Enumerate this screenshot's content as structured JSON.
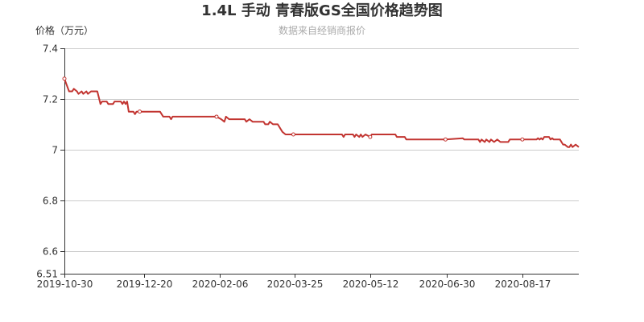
{
  "chart_data": {
    "type": "line",
    "title": "1.4L 手动 青春版GS全国价格趋势图",
    "subtitle": "数据来自经销商报价",
    "ylabel": "价格（万元）",
    "xlabel": "",
    "ylim": [
      6.51,
      7.4
    ],
    "yticks": [
      6.51,
      6.6,
      6.8,
      7,
      7.2,
      7.4
    ],
    "ytick_labels": [
      "6.51",
      "6.6",
      "6.8",
      "7",
      "7.2",
      "7.4"
    ],
    "xlim": [
      "2019-10-30",
      "2020-09-22"
    ],
    "xticks": [
      "2019-10-30",
      "2019-12-20",
      "2020-02-06",
      "2020-03-25",
      "2020-05-12",
      "2020-06-30",
      "2020-08-17"
    ],
    "grid": true,
    "colors": {
      "line": "#c23531",
      "grid": "#cccccc",
      "axis": "#333333"
    },
    "markers": [
      "2019-10-30",
      "2019-12-17",
      "2020-02-04",
      "2020-03-24",
      "2020-05-12",
      "2020-06-29",
      "2020-08-17"
    ],
    "series": [
      {
        "x": [
          "2019-10-30",
          "2019-11-02",
          "2019-11-04",
          "2019-11-05",
          "2019-11-07",
          "2019-11-08",
          "2019-11-10",
          "2019-11-11",
          "2019-11-13",
          "2019-11-14",
          "2019-11-16",
          "2019-11-20",
          "2019-11-22",
          "2019-11-23",
          "2019-11-26",
          "2019-11-27",
          "2019-11-30",
          "2019-12-01",
          "2019-12-05",
          "2019-12-06",
          "2019-12-07",
          "2019-12-08",
          "2019-12-09",
          "2019-12-10",
          "2019-12-13",
          "2019-12-14",
          "2019-12-15",
          "2019-12-17",
          "2019-12-30",
          "2019-12-31",
          "2020-01-01",
          "2020-01-05",
          "2020-01-06",
          "2020-01-07",
          "2020-02-04",
          "2020-02-07",
          "2020-02-09",
          "2020-02-10",
          "2020-02-12",
          "2020-02-22",
          "2020-02-23",
          "2020-02-25",
          "2020-02-27",
          "2020-03-05",
          "2020-03-06",
          "2020-03-08",
          "2020-03-09",
          "2020-03-11",
          "2020-03-14",
          "2020-03-17",
          "2020-03-19",
          "2020-03-24",
          "2020-04-24",
          "2020-04-25",
          "2020-04-26",
          "2020-05-01",
          "2020-05-02",
          "2020-05-03",
          "2020-05-05",
          "2020-05-06",
          "2020-05-07",
          "2020-05-09",
          "2020-05-12",
          "2020-05-13",
          "2020-05-28",
          "2020-05-29",
          "2020-06-03",
          "2020-06-04",
          "2020-06-29",
          "2020-07-10",
          "2020-07-11",
          "2020-07-20",
          "2020-07-21",
          "2020-07-22",
          "2020-07-24",
          "2020-07-25",
          "2020-07-27",
          "2020-07-28",
          "2020-07-30",
          "2020-08-01",
          "2020-08-03",
          "2020-08-08",
          "2020-08-09",
          "2020-08-17",
          "2020-08-26",
          "2020-08-27",
          "2020-08-28",
          "2020-08-29",
          "2020-08-30",
          "2020-08-31",
          "2020-09-03",
          "2020-09-04",
          "2020-09-05",
          "2020-09-06",
          "2020-09-10",
          "2020-09-12",
          "2020-09-13",
          "2020-09-15",
          "2020-09-16",
          "2020-09-17",
          "2020-09-18",
          "2020-09-20",
          "2020-09-22"
        ],
        "y": [
          7.28,
          7.23,
          7.23,
          7.24,
          7.23,
          7.22,
          7.23,
          7.22,
          7.23,
          7.22,
          7.23,
          7.23,
          7.18,
          7.19,
          7.19,
          7.18,
          7.18,
          7.19,
          7.19,
          7.18,
          7.19,
          7.18,
          7.19,
          7.15,
          7.15,
          7.14,
          7.15,
          7.15,
          7.15,
          7.14,
          7.13,
          7.13,
          7.12,
          7.13,
          7.13,
          7.12,
          7.11,
          7.13,
          7.12,
          7.12,
          7.11,
          7.12,
          7.11,
          7.11,
          7.1,
          7.1,
          7.11,
          7.1,
          7.1,
          7.07,
          7.06,
          7.06,
          7.06,
          7.05,
          7.06,
          7.06,
          7.05,
          7.06,
          7.05,
          7.06,
          7.05,
          7.06,
          7.05,
          7.06,
          7.06,
          7.05,
          7.05,
          7.04,
          7.04,
          7.045,
          7.04,
          7.04,
          7.03,
          7.04,
          7.03,
          7.04,
          7.03,
          7.04,
          7.03,
          7.04,
          7.03,
          7.03,
          7.04,
          7.04,
          7.04,
          7.045,
          7.04,
          7.045,
          7.04,
          7.05,
          7.05,
          7.04,
          7.045,
          7.04,
          7.04,
          7.02,
          7.02,
          7.01,
          7.01,
          7.02,
          7.01,
          7.02,
          7.01
        ]
      }
    ]
  }
}
